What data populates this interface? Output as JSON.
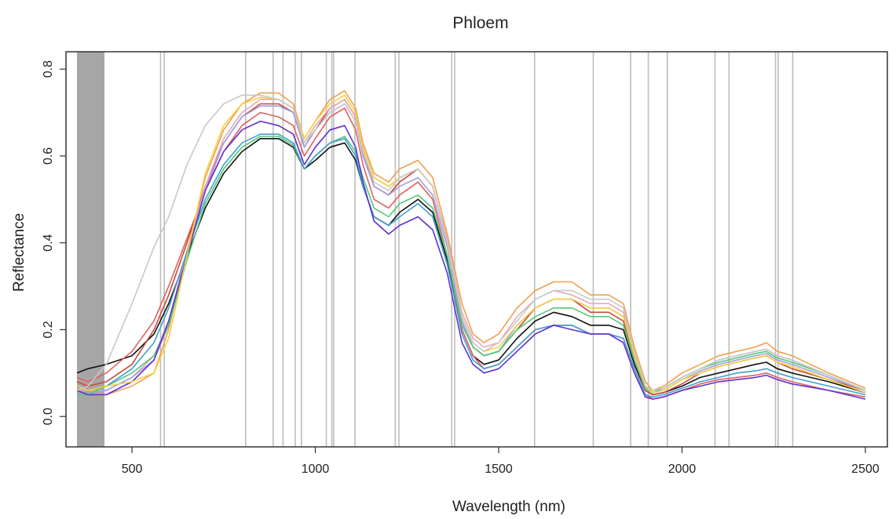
{
  "chart_data": {
    "type": "line",
    "title": "Phloem",
    "xlabel": "Wavelength (nm)",
    "ylabel": "Reflectance",
    "xlim": [
      320,
      2560
    ],
    "ylim": [
      -0.07,
      0.84
    ],
    "xticks": [
      500,
      1000,
      1500,
      2000,
      2500
    ],
    "yticks": [
      0.0,
      0.2,
      0.4,
      0.6,
      0.8
    ],
    "ytick_labels": [
      "0.0",
      "0.2",
      "0.4",
      "0.6",
      "0.8"
    ],
    "grid": false,
    "legend": "none",
    "shaded_band": {
      "x_from": 350,
      "x_to": 425,
      "color": "#a6a6a6"
    },
    "vertical_lines": [
      578,
      588,
      810,
      885,
      912,
      945,
      962,
      1030,
      1045,
      1050,
      1108,
      1218,
      1228,
      1372,
      1380,
      1598,
      1758,
      1860,
      1908,
      1960,
      2090,
      2128,
      2255,
      2262,
      2302
    ],
    "vertical_line_color": "#bdbdbd",
    "series": [
      {
        "color": "#111111",
        "x": [
          350,
          380,
          430,
          500,
          560,
          600,
          650,
          700,
          750,
          800,
          850,
          900,
          940,
          970,
          1000,
          1040,
          1080,
          1110,
          1130,
          1160,
          1200,
          1230,
          1280,
          1320,
          1360,
          1400,
          1430,
          1460,
          1500,
          1550,
          1600,
          1650,
          1700,
          1750,
          1800,
          1840,
          1870,
          1900,
          1920,
          1950,
          2000,
          2050,
          2100,
          2150,
          2200,
          2230,
          2260,
          2300,
          2400,
          2500
        ],
        "y": [
          0.1,
          0.11,
          0.12,
          0.14,
          0.19,
          0.26,
          0.37,
          0.48,
          0.56,
          0.61,
          0.64,
          0.64,
          0.62,
          0.57,
          0.59,
          0.62,
          0.63,
          0.59,
          0.53,
          0.46,
          0.44,
          0.47,
          0.5,
          0.47,
          0.36,
          0.2,
          0.14,
          0.12,
          0.13,
          0.18,
          0.22,
          0.24,
          0.23,
          0.21,
          0.21,
          0.2,
          0.12,
          0.06,
          0.05,
          0.055,
          0.07,
          0.09,
          0.1,
          0.11,
          0.12,
          0.125,
          0.11,
          0.1,
          0.08,
          0.055
        ]
      },
      {
        "color": "#e06060",
        "x": [
          350,
          380,
          430,
          500,
          560,
          600,
          650,
          700,
          750,
          800,
          850,
          900,
          940,
          970,
          1000,
          1040,
          1080,
          1110,
          1130,
          1160,
          1200,
          1230,
          1280,
          1320,
          1360,
          1400,
          1430,
          1460,
          1500,
          1550,
          1600,
          1650,
          1700,
          1750,
          1800,
          1840,
          1870,
          1900,
          1920,
          1950,
          2000,
          2050,
          2100,
          2150,
          2200,
          2230,
          2260,
          2300,
          2400,
          2500
        ],
        "y": [
          0.09,
          0.08,
          0.1,
          0.15,
          0.22,
          0.3,
          0.41,
          0.52,
          0.61,
          0.67,
          0.7,
          0.69,
          0.67,
          0.6,
          0.64,
          0.69,
          0.71,
          0.66,
          0.58,
          0.5,
          0.48,
          0.51,
          0.54,
          0.5,
          0.37,
          0.2,
          0.14,
          0.11,
          0.12,
          0.16,
          0.2,
          0.21,
          0.21,
          0.19,
          0.19,
          0.18,
          0.11,
          0.05,
          0.04,
          0.045,
          0.06,
          0.075,
          0.085,
          0.09,
          0.095,
          0.1,
          0.09,
          0.08,
          0.06,
          0.045
        ]
      },
      {
        "color": "#c94a3a",
        "x": [
          350,
          380,
          430,
          500,
          560,
          600,
          650,
          700,
          750,
          800,
          850,
          900,
          940,
          970,
          1000,
          1040,
          1080,
          1110,
          1130,
          1160,
          1200,
          1230,
          1280,
          1320,
          1360,
          1400,
          1430,
          1460,
          1500,
          1550,
          1600,
          1650,
          1700,
          1750,
          1800,
          1840,
          1870,
          1900,
          1920,
          1950,
          2000,
          2050,
          2100,
          2150,
          2200,
          2230,
          2260,
          2300,
          2400,
          2500
        ],
        "y": [
          0.08,
          0.07,
          0.08,
          0.12,
          0.2,
          0.28,
          0.4,
          0.53,
          0.63,
          0.69,
          0.72,
          0.72,
          0.7,
          0.62,
          0.66,
          0.71,
          0.73,
          0.69,
          0.61,
          0.53,
          0.51,
          0.54,
          0.57,
          0.53,
          0.4,
          0.22,
          0.16,
          0.14,
          0.15,
          0.2,
          0.25,
          0.27,
          0.27,
          0.24,
          0.24,
          0.22,
          0.13,
          0.06,
          0.05,
          0.055,
          0.075,
          0.1,
          0.115,
          0.125,
          0.135,
          0.14,
          0.125,
          0.11,
          0.085,
          0.06
        ]
      },
      {
        "color": "#f0a050",
        "x": [
          350,
          380,
          430,
          500,
          560,
          600,
          650,
          700,
          750,
          800,
          850,
          900,
          940,
          970,
          1000,
          1040,
          1080,
          1110,
          1130,
          1160,
          1200,
          1230,
          1280,
          1320,
          1360,
          1400,
          1430,
          1460,
          1500,
          1550,
          1600,
          1650,
          1700,
          1750,
          1800,
          1840,
          1870,
          1900,
          1920,
          1950,
          2000,
          2050,
          2100,
          2150,
          2200,
          2230,
          2260,
          2300,
          2400,
          2500
        ],
        "y": [
          0.07,
          0.06,
          0.05,
          0.07,
          0.1,
          0.2,
          0.38,
          0.55,
          0.66,
          0.72,
          0.745,
          0.745,
          0.72,
          0.64,
          0.68,
          0.73,
          0.75,
          0.71,
          0.63,
          0.56,
          0.54,
          0.57,
          0.59,
          0.55,
          0.42,
          0.26,
          0.19,
          0.17,
          0.19,
          0.25,
          0.29,
          0.31,
          0.31,
          0.28,
          0.28,
          0.26,
          0.16,
          0.08,
          0.06,
          0.07,
          0.1,
          0.12,
          0.14,
          0.15,
          0.16,
          0.17,
          0.15,
          0.14,
          0.1,
          0.065
        ]
      },
      {
        "color": "#e8a8b8",
        "x": [
          350,
          380,
          430,
          500,
          560,
          600,
          650,
          700,
          750,
          800,
          850,
          900,
          940,
          970,
          1000,
          1040,
          1080,
          1110,
          1130,
          1160,
          1200,
          1230,
          1280,
          1320,
          1360,
          1400,
          1430,
          1460,
          1500,
          1550,
          1600,
          1650,
          1700,
          1750,
          1800,
          1840,
          1870,
          1900,
          1920,
          1950,
          2000,
          2050,
          2100,
          2150,
          2200,
          2230,
          2260,
          2300,
          2400,
          2500
        ],
        "y": [
          0.06,
          0.06,
          0.06,
          0.09,
          0.14,
          0.22,
          0.38,
          0.53,
          0.64,
          0.7,
          0.73,
          0.73,
          0.71,
          0.63,
          0.67,
          0.71,
          0.73,
          0.69,
          0.62,
          0.55,
          0.53,
          0.55,
          0.57,
          0.53,
          0.41,
          0.24,
          0.18,
          0.16,
          0.17,
          0.23,
          0.27,
          0.29,
          0.28,
          0.26,
          0.26,
          0.24,
          0.15,
          0.07,
          0.06,
          0.065,
          0.09,
          0.11,
          0.13,
          0.14,
          0.15,
          0.155,
          0.14,
          0.13,
          0.095,
          0.06
        ]
      },
      {
        "color": "#a0a0e0",
        "x": [
          350,
          380,
          430,
          500,
          560,
          600,
          650,
          700,
          750,
          800,
          850,
          900,
          940,
          970,
          1000,
          1040,
          1080,
          1110,
          1130,
          1160,
          1200,
          1230,
          1280,
          1320,
          1360,
          1400,
          1430,
          1460,
          1500,
          1550,
          1600,
          1650,
          1700,
          1750,
          1800,
          1840,
          1870,
          1900,
          1920,
          1950,
          2000,
          2050,
          2100,
          2150,
          2200,
          2230,
          2260,
          2300,
          2400,
          2500
        ],
        "y": [
          0.06,
          0.05,
          0.06,
          0.09,
          0.13,
          0.21,
          0.37,
          0.52,
          0.63,
          0.69,
          0.715,
          0.715,
          0.7,
          0.62,
          0.66,
          0.7,
          0.72,
          0.68,
          0.6,
          0.53,
          0.51,
          0.53,
          0.55,
          0.51,
          0.39,
          0.22,
          0.16,
          0.14,
          0.15,
          0.21,
          0.25,
          0.27,
          0.27,
          0.25,
          0.25,
          0.23,
          0.14,
          0.07,
          0.055,
          0.06,
          0.085,
          0.105,
          0.12,
          0.13,
          0.14,
          0.145,
          0.13,
          0.12,
          0.09,
          0.06
        ]
      },
      {
        "color": "#50c878",
        "x": [
          350,
          380,
          430,
          500,
          560,
          600,
          650,
          700,
          750,
          800,
          850,
          900,
          940,
          970,
          1000,
          1040,
          1080,
          1110,
          1130,
          1160,
          1200,
          1230,
          1280,
          1320,
          1360,
          1400,
          1430,
          1460,
          1500,
          1550,
          1600,
          1650,
          1700,
          1750,
          1800,
          1840,
          1870,
          1900,
          1920,
          1950,
          2000,
          2050,
          2100,
          2150,
          2200,
          2230,
          2260,
          2300,
          2400,
          2500
        ],
        "y": [
          0.05,
          0.05,
          0.07,
          0.1,
          0.14,
          0.21,
          0.36,
          0.49,
          0.57,
          0.62,
          0.645,
          0.645,
          0.625,
          0.57,
          0.6,
          0.63,
          0.645,
          0.61,
          0.55,
          0.48,
          0.46,
          0.49,
          0.51,
          0.48,
          0.37,
          0.21,
          0.16,
          0.14,
          0.15,
          0.2,
          0.23,
          0.25,
          0.25,
          0.23,
          0.23,
          0.21,
          0.13,
          0.065,
          0.055,
          0.065,
          0.09,
          0.11,
          0.125,
          0.135,
          0.145,
          0.15,
          0.135,
          0.125,
          0.095,
          0.06
        ]
      },
      {
        "color": "#40a0d0",
        "x": [
          350,
          380,
          430,
          500,
          560,
          600,
          650,
          700,
          750,
          800,
          850,
          900,
          940,
          970,
          1000,
          1040,
          1080,
          1110,
          1130,
          1160,
          1200,
          1230,
          1280,
          1320,
          1360,
          1400,
          1430,
          1460,
          1500,
          1550,
          1600,
          1650,
          1700,
          1750,
          1800,
          1840,
          1870,
          1900,
          1920,
          1950,
          2000,
          2050,
          2100,
          2150,
          2200,
          2230,
          2260,
          2300,
          2400,
          2500
        ],
        "y": [
          0.07,
          0.06,
          0.07,
          0.11,
          0.17,
          0.25,
          0.38,
          0.5,
          0.58,
          0.63,
          0.65,
          0.65,
          0.63,
          0.57,
          0.6,
          0.63,
          0.64,
          0.6,
          0.53,
          0.46,
          0.44,
          0.46,
          0.49,
          0.46,
          0.35,
          0.19,
          0.13,
          0.11,
          0.12,
          0.16,
          0.2,
          0.21,
          0.21,
          0.19,
          0.19,
          0.18,
          0.11,
          0.05,
          0.045,
          0.05,
          0.065,
          0.08,
          0.09,
          0.1,
          0.105,
          0.11,
          0.1,
          0.09,
          0.07,
          0.05
        ]
      },
      {
        "color": "#6030d0",
        "x": [
          350,
          380,
          430,
          500,
          560,
          600,
          650,
          700,
          750,
          800,
          850,
          900,
          940,
          970,
          1000,
          1040,
          1080,
          1110,
          1130,
          1160,
          1200,
          1230,
          1280,
          1320,
          1360,
          1400,
          1430,
          1460,
          1500,
          1550,
          1600,
          1650,
          1700,
          1750,
          1800,
          1840,
          1870,
          1900,
          1920,
          1950,
          2000,
          2050,
          2100,
          2150,
          2200,
          2230,
          2260,
          2300,
          2400,
          2500
        ],
        "y": [
          0.06,
          0.05,
          0.05,
          0.08,
          0.13,
          0.22,
          0.37,
          0.52,
          0.61,
          0.66,
          0.68,
          0.67,
          0.65,
          0.58,
          0.62,
          0.66,
          0.67,
          0.62,
          0.54,
          0.45,
          0.42,
          0.44,
          0.46,
          0.43,
          0.33,
          0.17,
          0.12,
          0.1,
          0.11,
          0.15,
          0.19,
          0.21,
          0.2,
          0.19,
          0.19,
          0.17,
          0.1,
          0.045,
          0.04,
          0.045,
          0.06,
          0.07,
          0.08,
          0.085,
          0.09,
          0.095,
          0.085,
          0.075,
          0.06,
          0.04
        ]
      },
      {
        "color": "#f5d040",
        "x": [
          350,
          380,
          430,
          500,
          560,
          600,
          650,
          700,
          750,
          800,
          850,
          900,
          940,
          970,
          1000,
          1040,
          1080,
          1110,
          1130,
          1160,
          1200,
          1230,
          1280,
          1320,
          1360,
          1400,
          1430,
          1460,
          1500,
          1550,
          1600,
          1650,
          1700,
          1750,
          1800,
          1840,
          1870,
          1900,
          1920,
          1950,
          2000,
          2050,
          2100,
          2150,
          2200,
          2230,
          2260,
          2300,
          2400,
          2500
        ],
        "y": [
          0.07,
          0.06,
          0.07,
          0.08,
          0.1,
          0.18,
          0.37,
          0.56,
          0.67,
          0.72,
          0.735,
          0.73,
          0.71,
          0.64,
          0.68,
          0.72,
          0.74,
          0.7,
          0.62,
          0.55,
          0.53,
          0.55,
          0.57,
          0.53,
          0.4,
          0.23,
          0.17,
          0.15,
          0.16,
          0.21,
          0.25,
          0.27,
          0.27,
          0.25,
          0.25,
          0.23,
          0.14,
          0.07,
          0.055,
          0.06,
          0.085,
          0.1,
          0.115,
          0.125,
          0.135,
          0.14,
          0.125,
          0.115,
          0.085,
          0.055
        ]
      },
      {
        "color": "#c8c8c8",
        "x": [
          350,
          380,
          430,
          500,
          560,
          600,
          650,
          700,
          750,
          800,
          850,
          900,
          940,
          970,
          1000,
          1040,
          1080,
          1110,
          1130,
          1160,
          1200,
          1230,
          1280,
          1320,
          1360,
          1400,
          1430,
          1460,
          1500,
          1550,
          1600,
          1650,
          1700,
          1750,
          1800,
          1840,
          1870,
          1900,
          1920,
          1950,
          2000,
          2050,
          2100,
          2150,
          2200,
          2230,
          2260,
          2300,
          2400,
          2500
        ],
        "y": [
          0.06,
          0.07,
          0.12,
          0.26,
          0.39,
          0.46,
          0.58,
          0.67,
          0.72,
          0.74,
          0.74,
          0.73,
          0.71,
          0.63,
          0.66,
          0.7,
          0.72,
          0.68,
          0.61,
          0.54,
          0.52,
          0.55,
          0.57,
          0.53,
          0.4,
          0.23,
          0.17,
          0.15,
          0.17,
          0.22,
          0.27,
          0.29,
          0.29,
          0.27,
          0.27,
          0.25,
          0.15,
          0.07,
          0.06,
          0.065,
          0.09,
          0.11,
          0.13,
          0.14,
          0.15,
          0.155,
          0.14,
          0.13,
          0.095,
          0.06
        ]
      }
    ]
  }
}
